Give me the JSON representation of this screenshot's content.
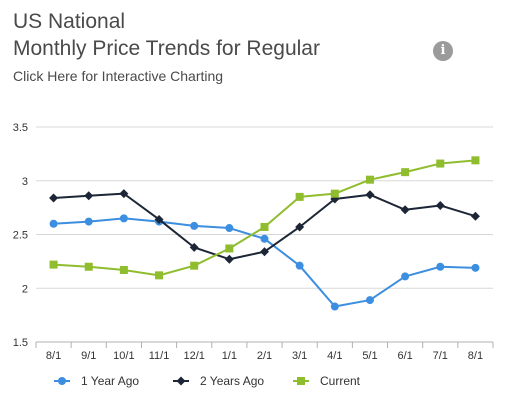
{
  "header": {
    "title_line1": "US National",
    "title_line2": "Monthly Price Trends for Regular",
    "interactive_link": "Click Here for Interactive Charting",
    "info_icon": "info-icon"
  },
  "chart_data": {
    "type": "line",
    "categories": [
      "8/1",
      "9/1",
      "10/1",
      "11/1",
      "12/1",
      "1/1",
      "2/1",
      "3/1",
      "4/1",
      "5/1",
      "6/1",
      "7/1",
      "8/1"
    ],
    "yticks": [
      "1.5",
      "2",
      "2.5",
      "3",
      "3.5"
    ],
    "ylim": [
      1.5,
      3.5
    ],
    "grid": true,
    "legend_position": "bottom",
    "series": [
      {
        "name": "1 Year Ago",
        "marker": "circle",
        "color": "#3c8ee0",
        "values": [
          2.6,
          2.62,
          2.65,
          2.62,
          2.58,
          2.56,
          2.46,
          2.21,
          1.83,
          1.89,
          2.11,
          2.2,
          2.19
        ]
      },
      {
        "name": "2 Years Ago",
        "marker": "diamond",
        "color": "#1c2636",
        "values": [
          2.84,
          2.86,
          2.88,
          2.64,
          2.38,
          2.27,
          2.34,
          2.57,
          2.83,
          2.87,
          2.73,
          2.77,
          2.67
        ]
      },
      {
        "name": "Current",
        "marker": "square",
        "color": "#8fbd2e",
        "values": [
          2.22,
          2.2,
          2.17,
          2.12,
          2.21,
          2.37,
          2.57,
          2.85,
          2.88,
          3.01,
          3.08,
          3.16,
          3.19
        ]
      }
    ]
  }
}
